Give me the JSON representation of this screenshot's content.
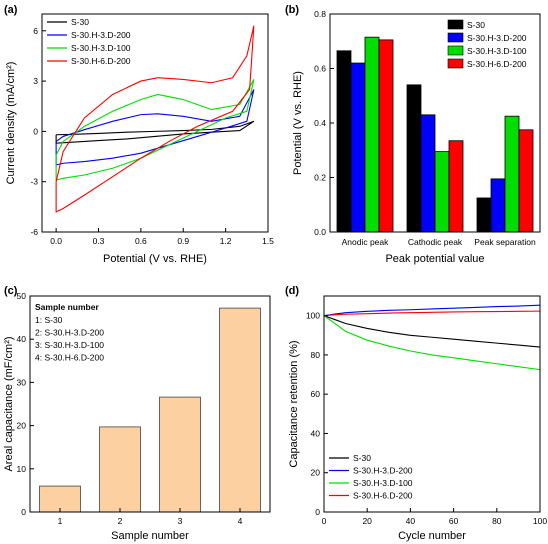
{
  "colors": {
    "S-30": "#000000",
    "S-30.H-3.D-200": "#0000ff",
    "S-30.H-3.D-100": "#00dd00",
    "S-30.H-6.D-200": "#ff0000",
    "bar_fill": "#fdd0a2",
    "bar_stroke": "#444444"
  },
  "chart_data": [
    {
      "panel": "(a)",
      "type": "line",
      "xlabel": "Potential (V vs. RHE)",
      "ylabel": "Current density (mA/cm²)",
      "xlim": [
        -0.1,
        1.5
      ],
      "ylim": [
        -6,
        7
      ],
      "xticks": [
        "0.0",
        "0.3",
        "0.6",
        "0.9",
        "1.2",
        "1.5"
      ],
      "yticks": [
        "-6",
        "-3",
        "0",
        "3",
        "6"
      ],
      "legend": {
        "position": "top-left",
        "entries": [
          "S-30",
          "S-30.H-3.D-200",
          "S-30.H-3.D-100",
          "S-30.H-6.D-200"
        ]
      },
      "series": [
        {
          "name": "S-30",
          "upper": [
            [
              0.0,
              -0.2
            ],
            [
              0.1,
              -0.18
            ],
            [
              0.3,
              -0.12
            ],
            [
              0.5,
              -0.05
            ],
            [
              0.7,
              0.0
            ],
            [
              0.9,
              0.05
            ],
            [
              1.1,
              0.12
            ],
            [
              1.3,
              0.3
            ],
            [
              1.4,
              0.6
            ]
          ],
          "lower": [
            [
              1.4,
              0.6
            ],
            [
              1.3,
              0.05
            ],
            [
              1.1,
              -0.05
            ],
            [
              0.9,
              -0.15
            ],
            [
              0.7,
              -0.3
            ],
            [
              0.5,
              -0.45
            ],
            [
              0.3,
              -0.55
            ],
            [
              0.1,
              -0.65
            ],
            [
              0.0,
              -0.7
            ],
            [
              0.0,
              -0.2
            ]
          ]
        },
        {
          "name": "S-30.H-3.D-200",
          "upper": [
            [
              0.0,
              -0.6
            ],
            [
              0.05,
              -0.3
            ],
            [
              0.2,
              0.1
            ],
            [
              0.4,
              0.6
            ],
            [
              0.6,
              1.0
            ],
            [
              0.72,
              1.05
            ],
            [
              0.9,
              0.9
            ],
            [
              1.1,
              0.6
            ],
            [
              1.3,
              0.9
            ],
            [
              1.4,
              2.5
            ]
          ],
          "lower": [
            [
              1.4,
              2.5
            ],
            [
              1.35,
              0.6
            ],
            [
              1.2,
              0.2
            ],
            [
              1.0,
              -0.3
            ],
            [
              0.8,
              -0.8
            ],
            [
              0.6,
              -1.3
            ],
            [
              0.4,
              -1.6
            ],
            [
              0.2,
              -1.8
            ],
            [
              0.05,
              -1.9
            ],
            [
              0.0,
              -2.0
            ],
            [
              0.0,
              -0.6
            ]
          ]
        },
        {
          "name": "S-30.H-3.D-100",
          "upper": [
            [
              0.0,
              -1.4
            ],
            [
              0.05,
              -0.6
            ],
            [
              0.2,
              0.3
            ],
            [
              0.4,
              1.2
            ],
            [
              0.6,
              1.9
            ],
            [
              0.72,
              2.2
            ],
            [
              0.9,
              1.9
            ],
            [
              1.1,
              1.3
            ],
            [
              1.3,
              1.6
            ],
            [
              1.4,
              3.1
            ]
          ],
          "lower": [
            [
              1.4,
              3.1
            ],
            [
              1.35,
              1.2
            ],
            [
              1.2,
              0.8
            ],
            [
              1.0,
              0.0
            ],
            [
              0.8,
              -0.8
            ],
            [
              0.6,
              -1.6
            ],
            [
              0.4,
              -2.2
            ],
            [
              0.2,
              -2.6
            ],
            [
              0.05,
              -2.8
            ],
            [
              0.0,
              -2.9
            ],
            [
              0.0,
              -1.4
            ]
          ]
        },
        {
          "name": "S-30.H-6.D-200",
          "upper": [
            [
              0.0,
              -3.0
            ],
            [
              0.05,
              -1.2
            ],
            [
              0.2,
              0.8
            ],
            [
              0.4,
              2.2
            ],
            [
              0.6,
              3.0
            ],
            [
              0.72,
              3.2
            ],
            [
              0.9,
              3.1
            ],
            [
              1.1,
              2.9
            ],
            [
              1.25,
              3.2
            ],
            [
              1.35,
              4.5
            ],
            [
              1.4,
              6.3
            ]
          ],
          "lower": [
            [
              1.4,
              6.3
            ],
            [
              1.37,
              2.5
            ],
            [
              1.25,
              1.2
            ],
            [
              1.0,
              0.3
            ],
            [
              0.8,
              -0.6
            ],
            [
              0.6,
              -1.6
            ],
            [
              0.4,
              -2.7
            ],
            [
              0.2,
              -3.8
            ],
            [
              0.05,
              -4.6
            ],
            [
              0.0,
              -4.8
            ],
            [
              0.0,
              -3.0
            ]
          ]
        }
      ]
    },
    {
      "panel": "(b)",
      "type": "bar",
      "xlabel": "Peak potential value",
      "ylabel": "Potential (V vs. RHE)",
      "ylim": [
        0,
        0.8
      ],
      "yticks": [
        "0.0",
        "0.2",
        "0.4",
        "0.6",
        "0.8"
      ],
      "categories": [
        "Anodic peak",
        "Cathodic peak",
        "Peak separation"
      ],
      "legend": {
        "position": "top-right"
      },
      "series": [
        {
          "name": "S-30",
          "values": [
            0.665,
            0.54,
            0.125
          ]
        },
        {
          "name": "S-30.H-3.D-200",
          "values": [
            0.62,
            0.43,
            0.195
          ]
        },
        {
          "name": "S-30.H-3.D-100",
          "values": [
            0.715,
            0.295,
            0.425
          ]
        },
        {
          "name": "S-30.H-6.D-200",
          "values": [
            0.705,
            0.335,
            0.375
          ]
        }
      ]
    },
    {
      "panel": "(c)",
      "type": "bar",
      "xlabel": "Sample number",
      "ylabel": "Areal capacitance (mF/cm²)",
      "ylim": [
        0,
        50
      ],
      "yticks": [
        "0",
        "10",
        "20",
        "30",
        "40",
        "50"
      ],
      "categories": [
        "1",
        "2",
        "3",
        "4"
      ],
      "values": [
        6,
        19.7,
        26.6,
        47.2
      ],
      "legend_title": "Sample number",
      "legend_items": [
        "1: S-30",
        "2: S-30.H-3.D-200",
        "3: S-30.H-3.D-100",
        "4: S-30.H-6.D-200"
      ]
    },
    {
      "panel": "(d)",
      "type": "line",
      "xlabel": "Cycle number",
      "ylabel": "Capacitance retention (%)",
      "xlim": [
        0,
        100
      ],
      "ylim": [
        0,
        110
      ],
      "xticks": [
        "0",
        "20",
        "40",
        "60",
        "80",
        "100"
      ],
      "yticks": [
        "0",
        "20",
        "40",
        "60",
        "80",
        "100"
      ],
      "legend": {
        "position": "bottom-left",
        "entries": [
          "S-30",
          "S-30.H-3.D-200",
          "S-30.H-3.D-100",
          "S-30.H-6.D-200"
        ]
      },
      "series": [
        {
          "name": "S-30",
          "x": [
            0,
            5,
            10,
            20,
            30,
            40,
            50,
            60,
            70,
            80,
            90,
            100
          ],
          "y": [
            100,
            98,
            96,
            93.5,
            91.5,
            90,
            89,
            88,
            87,
            86,
            85,
            84
          ]
        },
        {
          "name": "S-30.H-3.D-200",
          "x": [
            0,
            5,
            10,
            20,
            30,
            40,
            50,
            60,
            70,
            80,
            90,
            100
          ],
          "y": [
            100,
            100.8,
            101.5,
            102.2,
            102.7,
            103,
            103.4,
            103.8,
            104.2,
            104.6,
            104.9,
            105.3
          ]
        },
        {
          "name": "S-30.H-3.D-100",
          "x": [
            0,
            5,
            10,
            20,
            30,
            40,
            50,
            60,
            70,
            80,
            90,
            100
          ],
          "y": [
            100,
            96,
            92,
            87.5,
            84.5,
            82,
            80,
            78.5,
            77,
            75.5,
            74,
            72.5
          ]
        },
        {
          "name": "S-30.H-6.D-200",
          "x": [
            0,
            5,
            10,
            20,
            30,
            40,
            50,
            60,
            70,
            80,
            90,
            100
          ],
          "y": [
            100,
            100.4,
            100.7,
            101,
            101.3,
            101.5,
            101.7,
            101.9,
            102,
            102.1,
            102.2,
            102.3
          ]
        }
      ]
    }
  ]
}
